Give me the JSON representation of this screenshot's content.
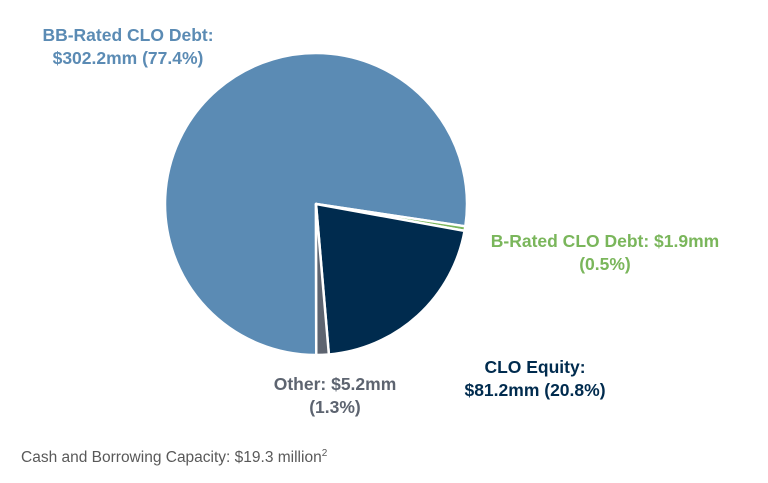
{
  "chart_data": {
    "type": "pie",
    "title": "",
    "unit": "$mm",
    "slices": [
      {
        "name": "BB-Rated CLO Debt",
        "value": 302.2,
        "percent": 77.4,
        "color": "#5b8bb4",
        "label_line1": "BB-Rated CLO Debt:",
        "label_line2": "$302.2mm (77.4%)",
        "label_color": "#5b8bb4"
      },
      {
        "name": "B-Rated CLO Debt",
        "value": 1.9,
        "percent": 0.5,
        "color": "#7ab65b",
        "label_line1": "B-Rated CLO Debt: $1.9mm",
        "label_line2": "(0.5%)",
        "label_color": "#7ab65b"
      },
      {
        "name": "CLO Equity",
        "value": 81.2,
        "percent": 20.8,
        "color": "#002b4e",
        "label_line1": "CLO Equity:",
        "label_line2": "$81.2mm (20.8%)",
        "label_color": "#002b4e"
      },
      {
        "name": "Other",
        "value": 5.2,
        "percent": 1.3,
        "color": "#5d6470",
        "label_line1": "Other: $5.2mm",
        "label_line2": "(1.3%)",
        "label_color": "#5d6470"
      }
    ],
    "legend": "none"
  },
  "footnote": {
    "text": "Cash and Borrowing Capacity: $19.3 million",
    "superscript": "2"
  }
}
